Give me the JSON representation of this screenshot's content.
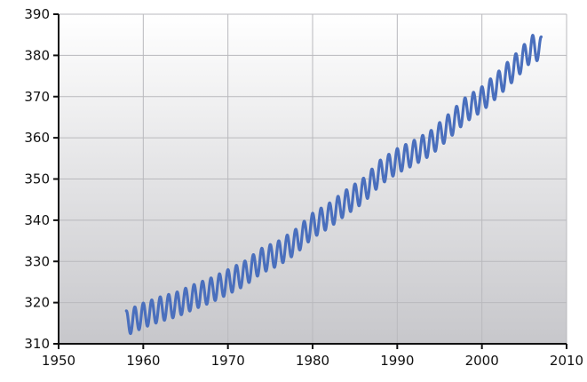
{
  "chart_data": {
    "type": "line",
    "xlim": [
      1950,
      2010
    ],
    "ylim": [
      310,
      390
    ],
    "x_ticks": [
      1950,
      1960,
      1970,
      1980,
      1990,
      2000,
      2010
    ],
    "y_ticks": [
      310,
      320,
      330,
      340,
      350,
      360,
      370,
      380,
      390
    ],
    "x_tick_labels": [
      "1950",
      "1960",
      "1970",
      "1980",
      "1990",
      "2000",
      "2010"
    ],
    "y_tick_labels": [
      "310",
      "320",
      "330",
      "340",
      "350",
      "360",
      "370",
      "380",
      "390"
    ],
    "grid": true,
    "legend": "none",
    "colors": {
      "series": "#4a6fbd",
      "plot_bg_top": "#ffffff",
      "plot_bg_bottom": "#c7c7cb",
      "grid": "#b9b9bd",
      "axis": "#111111"
    },
    "series": [
      {
        "seasonal_amplitude_ppm": 3,
        "x": [
          1958,
          1960,
          1962,
          1964,
          1966,
          1968,
          1970,
          1972,
          1974,
          1976,
          1978,
          1980,
          1982,
          1984,
          1986,
          1988,
          1990,
          1992,
          1994,
          1996,
          1998,
          2000,
          2002,
          2004,
          2006,
          2007
        ],
        "values": [
          315.0,
          316.9,
          318.4,
          319.6,
          321.4,
          323.0,
          325.0,
          327.1,
          330.2,
          332.0,
          334.8,
          338.7,
          341.2,
          344.4,
          347.2,
          351.6,
          354.4,
          356.4,
          358.8,
          362.6,
          366.7,
          369.4,
          373.2,
          377.4,
          381.9,
          381.5
        ]
      }
    ]
  }
}
